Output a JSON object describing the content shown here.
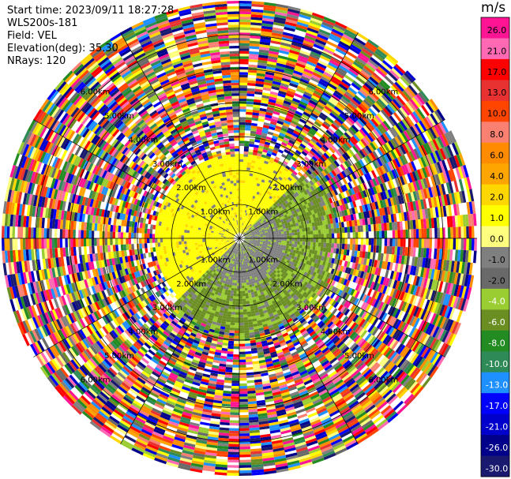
{
  "header": {
    "start_time": "Start time: 2023/09/11 18:27:28",
    "instrument": "WLS200s-181",
    "field": "Field: VEL",
    "elevation": "Elevation(deg): 35.30",
    "nrays": "NRays: 120"
  },
  "chart_data": {
    "type": "heatmap",
    "projection": "polar-ppi",
    "field": "VEL",
    "units": "m/s",
    "nrays": 120,
    "elevation_deg": 35.3,
    "max_range_km": 7.0,
    "range_rings_km": [
      1,
      2,
      3,
      4,
      5,
      6
    ],
    "range_labels": [
      "1.00km",
      "2.00km",
      "3.00km",
      "4.00km",
      "5.00km",
      "6.00km"
    ],
    "colorbar": {
      "title": "m/s",
      "ticks": [
        "26.0",
        "21.0",
        "17.0",
        "13.0",
        "10.0",
        "8.0",
        "6.0",
        "4.0",
        "2.0",
        "1.0",
        "0.0",
        "-1.0",
        "-2.0",
        "-4.0",
        "-6.0",
        "-8.0",
        "-10.0",
        "-13.0",
        "-17.0",
        "-21.0",
        "-26.0",
        "-30.0"
      ],
      "colors": [
        "#ff1493",
        "#ff69b4",
        "#ff0000",
        "#e83232",
        "#ff4500",
        "#fa8072",
        "#ff8c00",
        "#ffa500",
        "#ffd700",
        "#ffff00",
        "#ffff7f",
        "#7f7f7f",
        "#696969",
        "#9acd32",
        "#6b8e23",
        "#228b22",
        "#2e8b57",
        "#1e90ff",
        "#0000ff",
        "#0000cd",
        "#00008b",
        "#191970"
      ]
    },
    "near_field_pattern": "yellow (1.0 to 2.0 m/s) in north-west half within ~2.5 km; grey (0.0 to -1.0 m/s) and olive green (-2.0 to -4.0 m/s) in south-east half; noisy multicolour beyond ~3 km"
  }
}
